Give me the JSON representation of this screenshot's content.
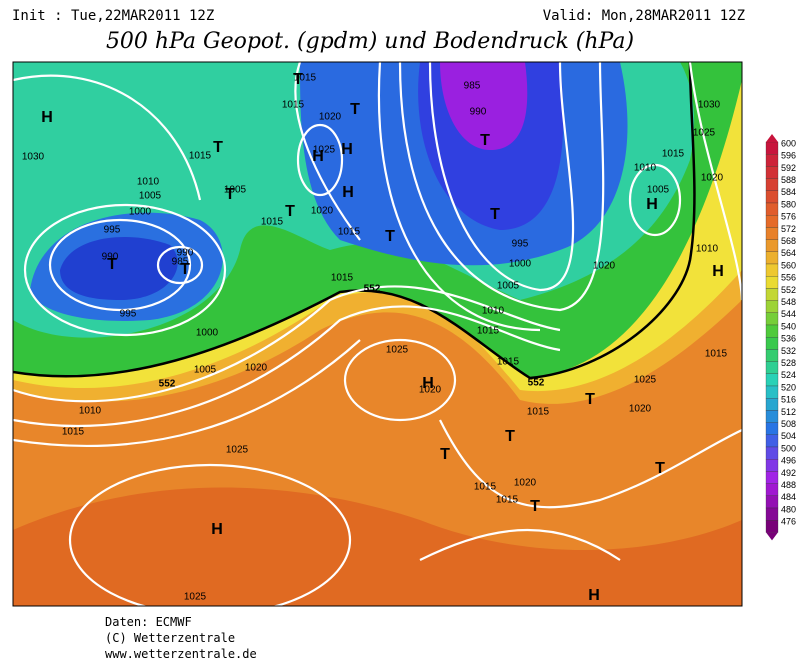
{
  "header": {
    "init": "Init : Tue,22MAR2011 12Z",
    "valid": "Valid: Mon,28MAR2011 12Z",
    "title": "500 hPa Geopot. (gpdm) und Bodendruck (hPa)"
  },
  "map": {
    "isobar_labels": [
      "1030",
      "1015",
      "1010",
      "1005",
      "1000",
      "995",
      "990",
      "990",
      "985",
      "995",
      "1000",
      "1005",
      "1010",
      "1015",
      "1020",
      "1025",
      "1025",
      "1015",
      "1015",
      "1020",
      "1025",
      "1020",
      "1005",
      "1015",
      "1015",
      "1015",
      "1025",
      "1020",
      "985",
      "990",
      "995",
      "1000",
      "1005",
      "1010",
      "1015",
      "1020",
      "1015",
      "1010",
      "1005",
      "1020",
      "1030",
      "1025",
      "1010",
      "1015",
      "1025",
      "1020",
      "1015",
      "1015",
      "1015",
      "1015",
      "1020"
    ],
    "pressure_centers": [
      "H",
      "T",
      "T",
      "T",
      "H",
      "H",
      "H",
      "T",
      "T",
      "T",
      "T",
      "T",
      "T",
      "T",
      "H",
      "T",
      "T",
      "T",
      "T",
      "H",
      "H",
      "H",
      "H",
      "T"
    ],
    "contour_labels": [
      "552",
      "552",
      "552"
    ]
  },
  "colorbar": {
    "labels": [
      600,
      596,
      592,
      588,
      584,
      580,
      576,
      572,
      568,
      564,
      560,
      556,
      552,
      548,
      544,
      540,
      536,
      532,
      528,
      524,
      520,
      516,
      512,
      508,
      504,
      500,
      496,
      492,
      488,
      484,
      480,
      476
    ]
  },
  "footer": {
    "source": "Daten: ECMWF",
    "copyright": "(C) Wetterzentrale",
    "url": "www.wetterzentrale.de"
  }
}
